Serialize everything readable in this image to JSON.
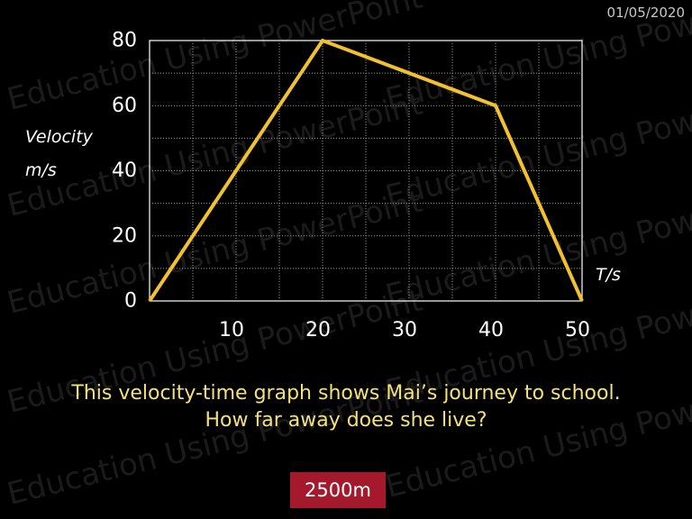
{
  "date": "01/05/2020",
  "watermark": "Education Using PowerPoint",
  "question": {
    "line1": "This velocity-time graph shows Mai’s journey to school.",
    "line2": "How far away does she live?"
  },
  "answer": "2500m",
  "colors": {
    "line": "#f2c12e",
    "question_text": "#f5e17a",
    "answer_bg": "#a41a2c",
    "grid": "#9a9a9a"
  },
  "chart_data": {
    "type": "line",
    "ylabel_line1": "Velocity",
    "ylabel_line2": "m/s",
    "xlabel": "T/s",
    "xlim": [
      0,
      50
    ],
    "ylim": [
      0,
      80
    ],
    "x_ticks": [
      "10",
      "20",
      "30",
      "40",
      "50"
    ],
    "x_tick_values": [
      10,
      20,
      30,
      40,
      50
    ],
    "y_ticks": [
      "0",
      "20",
      "40",
      "60",
      "80"
    ],
    "y_tick_values": [
      0,
      20,
      40,
      60,
      80
    ],
    "grid": true,
    "series": [
      {
        "x": [
          0,
          20,
          40,
          50
        ],
        "y": [
          0,
          80,
          60,
          0
        ]
      }
    ]
  }
}
